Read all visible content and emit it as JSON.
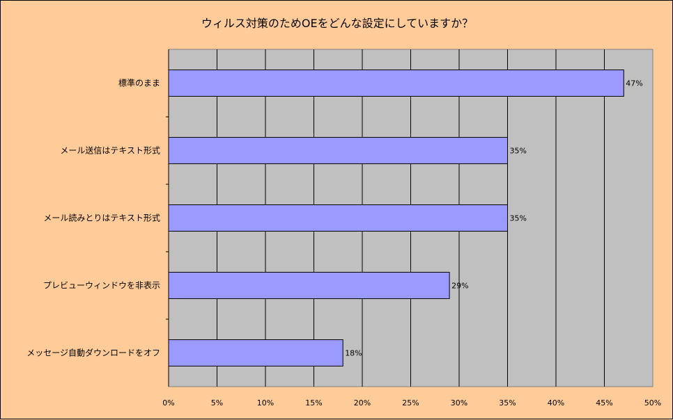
{
  "chart_data": {
    "type": "bar",
    "orientation": "horizontal",
    "title": "ウィルス対策のためOEをどんな設定にしていますか？",
    "categories": [
      "標準のまま",
      "メール送信はテキスト形式",
      "メール読みとりはテキスト形式",
      "プレビューウィンドウを非表示",
      "メッセージ自動ダウンロードをオフ"
    ],
    "values": [
      47,
      35,
      35,
      29,
      18
    ],
    "data_labels": [
      "47%",
      "35%",
      "35%",
      "29%",
      "18%"
    ],
    "xlim": [
      0,
      50
    ],
    "x_ticks": [
      "0%",
      "5%",
      "10%",
      "15%",
      "20%",
      "25%",
      "30%",
      "35%",
      "40%",
      "45%",
      "50%"
    ],
    "grid": true,
    "legend": "none",
    "colors": {
      "background": "#ffcc99",
      "plot_area": "#c0c0c0",
      "bar_fill": "#9999ff",
      "bar_stroke": "#000000",
      "gridline": "#000000"
    }
  }
}
